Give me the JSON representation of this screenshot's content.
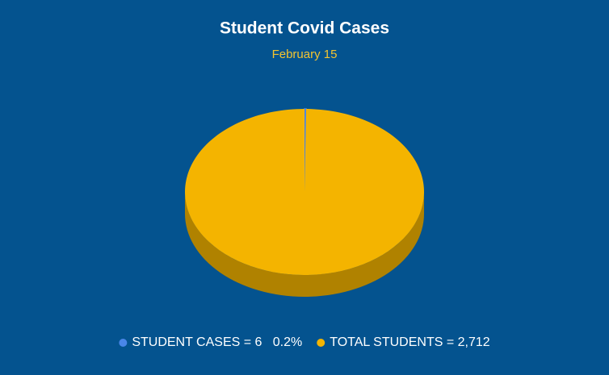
{
  "chart_data": {
    "type": "pie",
    "title": "Student Covid Cases",
    "subtitle": "February 15",
    "categories": [
      "STUDENT CASES = 6   0.2%",
      "TOTAL STUDENTS = 2,712"
    ],
    "values": [
      6,
      2712
    ],
    "colors": [
      "#4a86e8",
      "#f4b400"
    ],
    "background": "#04538f",
    "legend": "bottom"
  }
}
